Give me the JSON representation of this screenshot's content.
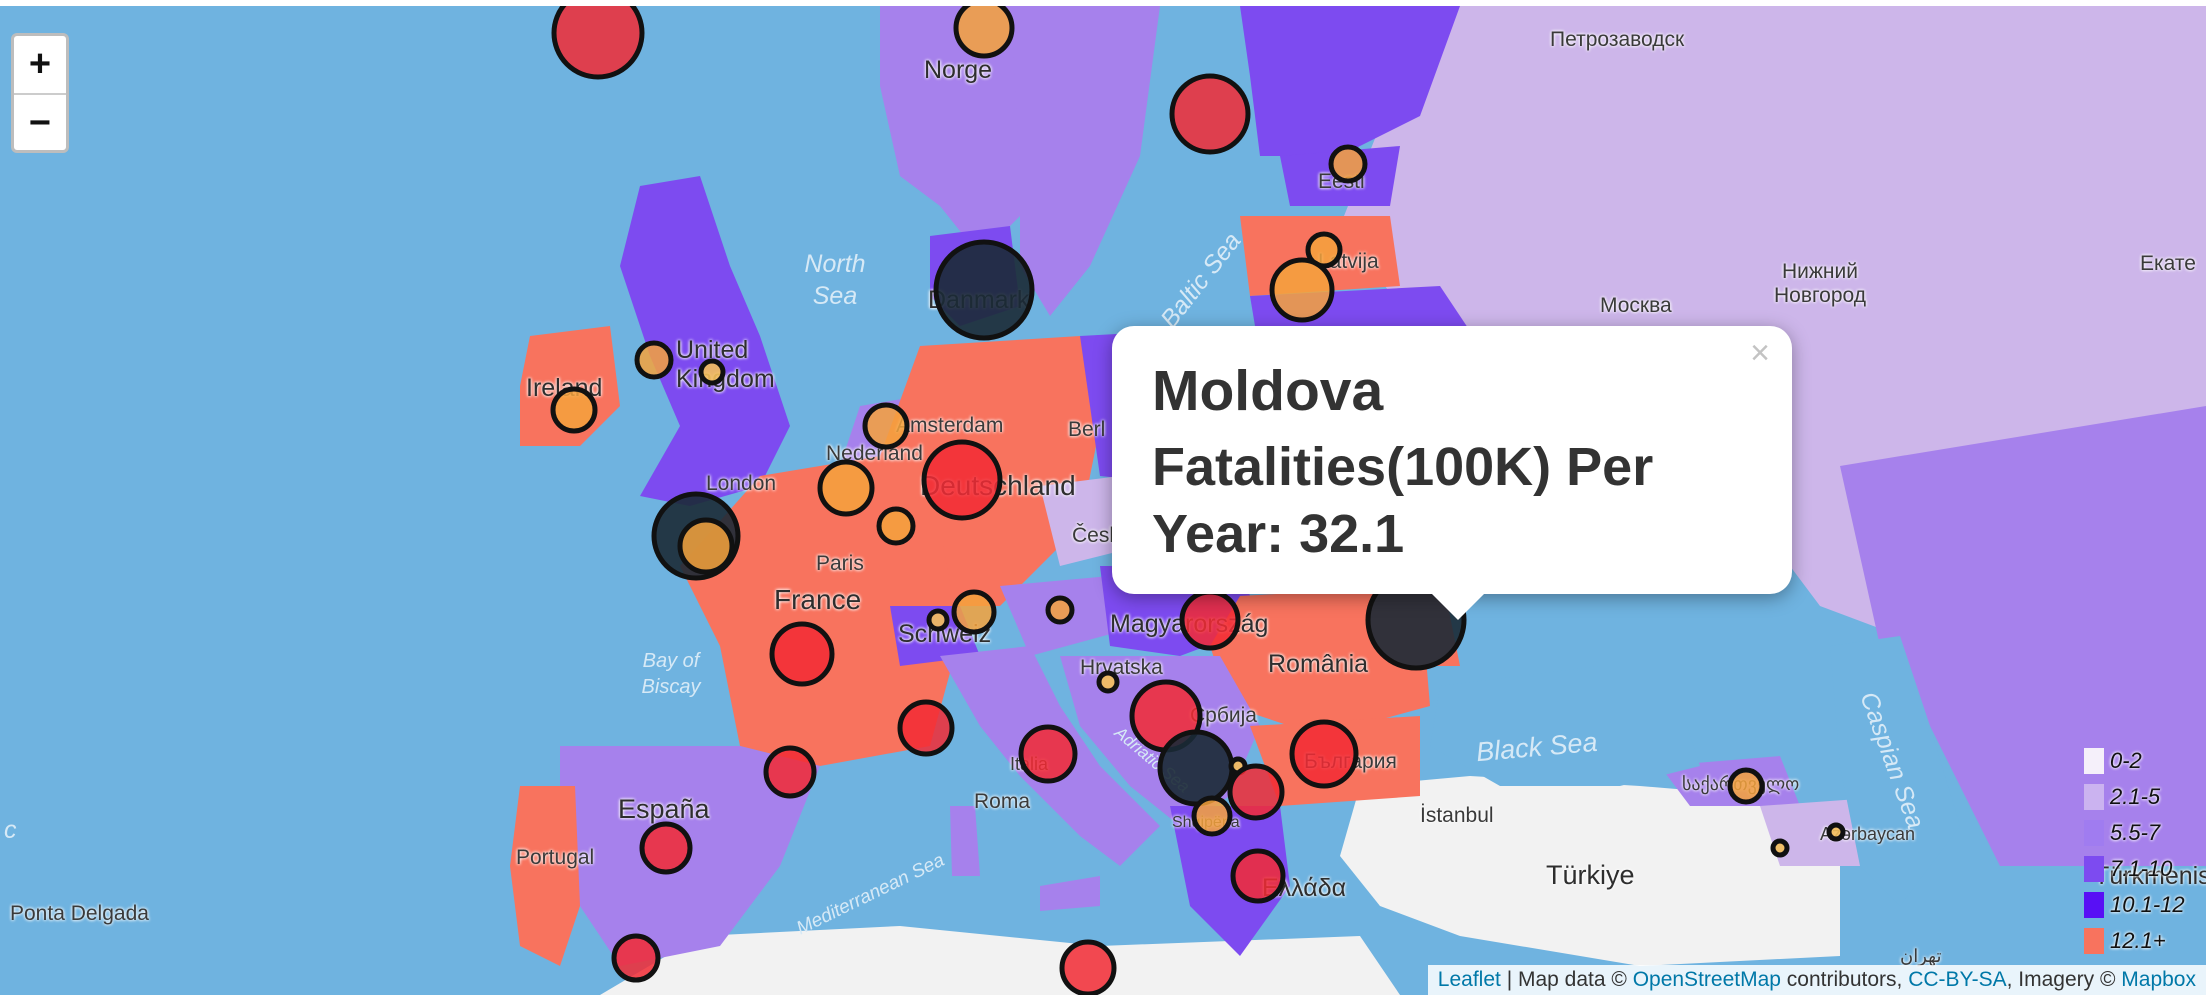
{
  "controls": {
    "zoom_in": "+",
    "zoom_out": "−"
  },
  "popup": {
    "close": "×",
    "title": "Moldova",
    "body": "Fatalities(100K) Per Year: 32.1"
  },
  "legend": {
    "items": [
      {
        "label": "0-2",
        "color": "#f5f0fa"
      },
      {
        "label": "2.1-5",
        "color": "#cbb3f0"
      },
      {
        "label": "5.5-7",
        "color": "#a07cf0"
      },
      {
        "label": "7.1-10",
        "color": "#7d4bf0"
      },
      {
        "label": "10.1-12",
        "color": "#5810f5"
      },
      {
        "label": "12.1+",
        "color": "#f8735e"
      }
    ]
  },
  "attribution": {
    "leaflet": "Leaflet",
    "sep": " | Map data © ",
    "osm": "OpenStreetMap",
    "contrib": " contributors, ",
    "license": "CC-BY-SA",
    "imagery": ", Imagery © ",
    "mapbox": "Mapbox"
  },
  "labels": {
    "petrozavodsk": "Петрозаводск",
    "norge": "Norge",
    "north_sea": "North Sea",
    "baltic_sea": "Baltic Sea",
    "nizhny": "Нижний Новгород",
    "moskva": "Москва",
    "ekat": "Екате",
    "denmark": "Danmark",
    "united_kingdom": "United Kingdom",
    "ireland": "Ireland",
    "amsterdam": "Amsterdam",
    "nederland": "Nederland",
    "london": "London",
    "deutschland": "Deutschland",
    "berlin": "Berl",
    "paris": "Paris",
    "france": "France",
    "cesko": "Česk",
    "bay_biscay": "Bay of Biscay",
    "schweiz": "Schweiz",
    "magyarorszag": "Magyarország",
    "romania": "România",
    "hrvatska": "Hrvatska",
    "srbija": "Србија",
    "black_sea": "Black Sea",
    "caspian": "Caspian Sea",
    "espana": "España",
    "portugal": "Portugal",
    "roma": "Roma",
    "istanbul": "İstanbul",
    "turkiye": "Türkiye",
    "ellada": "Ελλάδα",
    "bulgaria": "България",
    "mediterranean": "Mediterranean Sea",
    "adriatic": "Adriatic Sea",
    "ponta": "Ponta Delgada",
    "azerbaycan": "Azərbaycan",
    "turkmenistan": "Türkmenistan",
    "sakartvelo": "საქართველო",
    "tehran": "تهران",
    "estonia": "Eesti",
    "latvia": "Latvija",
    "c_left": "c",
    "shqiperia": "Shqipëria",
    "italia": "Italia"
  }
}
